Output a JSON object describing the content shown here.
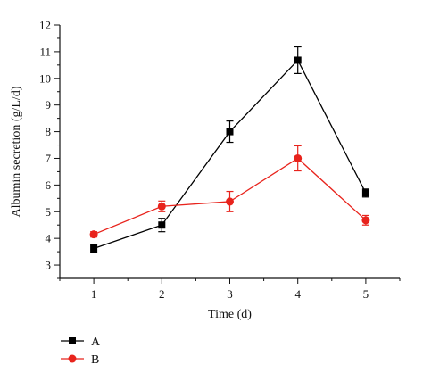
{
  "chart_data": {
    "type": "line",
    "xlabel": "Time (d)",
    "ylabel": "Albumin secretion (g/L/d)",
    "x": [
      1,
      2,
      3,
      4,
      5
    ],
    "x_ticks": [
      "1",
      "2",
      "3",
      "4",
      "5"
    ],
    "xlim": [
      0.5,
      5.5
    ],
    "y_ticks": [
      "3",
      "4",
      "5",
      "6",
      "7",
      "8",
      "9",
      "10",
      "11",
      "12"
    ],
    "ylim": [
      2.5,
      12
    ],
    "grid": false,
    "legend_position": "bottom-left",
    "series": [
      {
        "name": "A",
        "color": "#000000",
        "marker": "square",
        "values": [
          3.62,
          4.5,
          8.0,
          10.68,
          5.7
        ],
        "errors": [
          0.15,
          0.25,
          0.4,
          0.5,
          0.15
        ]
      },
      {
        "name": "B",
        "color": "#e8231c",
        "marker": "circle",
        "values": [
          4.15,
          5.2,
          5.38,
          7.0,
          4.68
        ],
        "errors": [
          0.1,
          0.2,
          0.38,
          0.47,
          0.18
        ]
      }
    ]
  }
}
